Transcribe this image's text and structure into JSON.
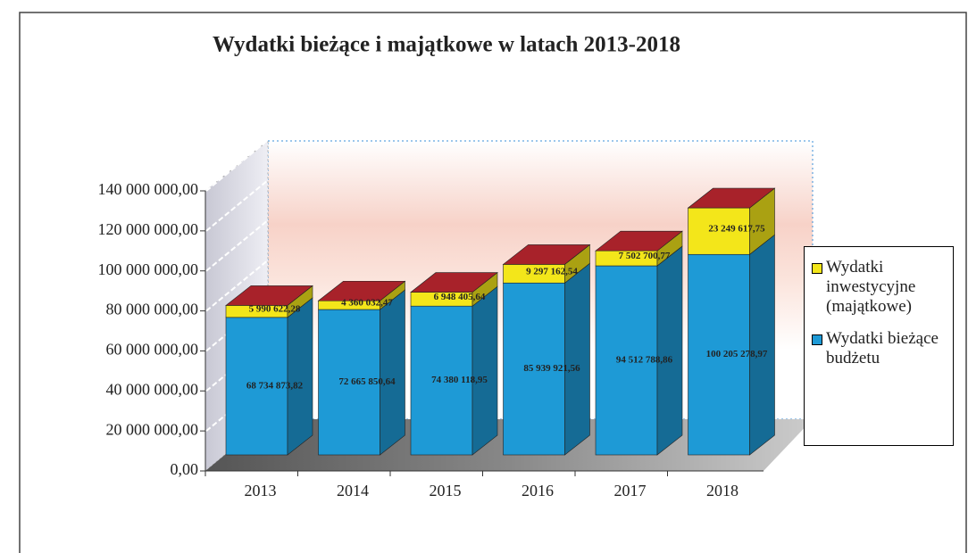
{
  "chart_data": {
    "type": "bar",
    "stacked": true,
    "title": "Wydatki  bieżące i majątkowe w latach 2013-2018",
    "categories": [
      "2013",
      "2014",
      "2015",
      "2016",
      "2017",
      "2018"
    ],
    "series": [
      {
        "name": "Wydatki bieżące budżetu",
        "color": "#1e9ad6",
        "values": [
          68734873.82,
          72665850.64,
          74380118.95,
          85939921.56,
          94512788.86,
          100205278.97
        ],
        "value_labels": [
          "68 734 873,82",
          "72 665 850,64",
          "74 380 118,95",
          "85 939 921,56",
          "94 512 788,86",
          "100 205 278,97"
        ]
      },
      {
        "name": "Wydatki inwestycyjne (majątkowe)",
        "color": "#f3e61a",
        "values": [
          5990622.28,
          4360032.47,
          6948405.64,
          9297162.54,
          7502700.77,
          23249617.75
        ],
        "value_labels": [
          "5 990 622,28",
          "4 360 032,47",
          "6 948 405,64",
          "9 297 162,54",
          "7 502 700,77",
          "23 249 617,75"
        ]
      }
    ],
    "ylim": [
      0,
      140000000
    ],
    "yticks": [
      {
        "value": 0,
        "label": "0,00"
      },
      {
        "value": 20000000,
        "label": "20 000 000,00"
      },
      {
        "value": 40000000,
        "label": "40 000 000,00"
      },
      {
        "value": 60000000,
        "label": "60 000 000,00"
      },
      {
        "value": 80000000,
        "label": "80 000 000,00"
      },
      {
        "value": 100000000,
        "label": "100 000 000,00"
      },
      {
        "value": 120000000,
        "label": "120 000 000,00"
      },
      {
        "value": 140000000,
        "label": "140 000 000,00"
      }
    ],
    "grid": true,
    "legend": "right"
  }
}
